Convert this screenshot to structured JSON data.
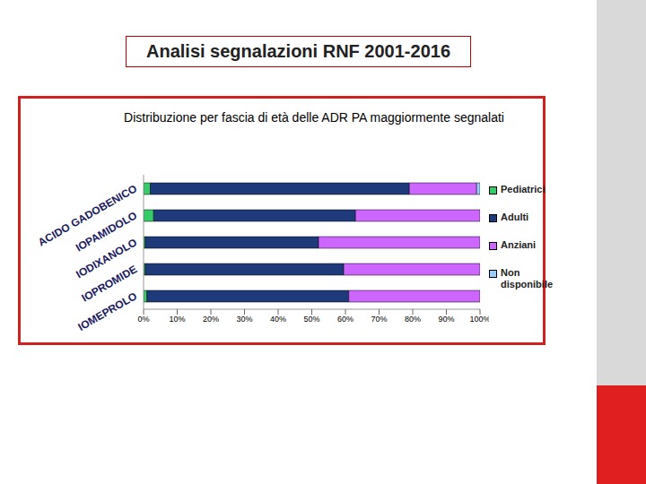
{
  "header": {
    "title": "Analisi segnalazioni RNF 2001-2016"
  },
  "chart_data": {
    "type": "bar",
    "title": "Distribuzione per fascia di età delle ADR PA maggiormente segnalati",
    "orientation": "horizontal",
    "stacked": true,
    "legend": "right",
    "grid": false,
    "categories": [
      "ACIDO GADOBENICO",
      "IOPAMIDOLO",
      "IODIXANOLO",
      "IOPROMIDE",
      "IOMEPROLO"
    ],
    "series": [
      {
        "name": "Pediatrici",
        "color": "#33cc66",
        "values": [
          2,
          3,
          0.5,
          0.5,
          1
        ]
      },
      {
        "name": "Adulti",
        "color": "#1f3a7a",
        "values": [
          77,
          60,
          51.5,
          59,
          60
        ]
      },
      {
        "name": "Anziani",
        "color": "#cc66ff",
        "values": [
          20,
          37,
          48,
          40.5,
          39
        ]
      },
      {
        "name": "Non disponibile",
        "color": "#99ccff",
        "values": [
          1,
          0,
          0,
          0,
          0
        ]
      }
    ],
    "xlim": [
      0,
      100
    ],
    "xticks": [
      {
        "value": 0,
        "label": "0%"
      },
      {
        "value": 10,
        "label": "10%"
      },
      {
        "value": 20,
        "label": "20%"
      },
      {
        "value": 30,
        "label": "30%"
      },
      {
        "value": 40,
        "label": "40%"
      },
      {
        "value": 50,
        "label": "50%"
      },
      {
        "value": 60,
        "label": "60%"
      },
      {
        "value": 70,
        "label": "70%"
      },
      {
        "value": 80,
        "label": "80%"
      },
      {
        "value": 90,
        "label": "90%"
      },
      {
        "value": 100,
        "label": "100%"
      }
    ]
  }
}
